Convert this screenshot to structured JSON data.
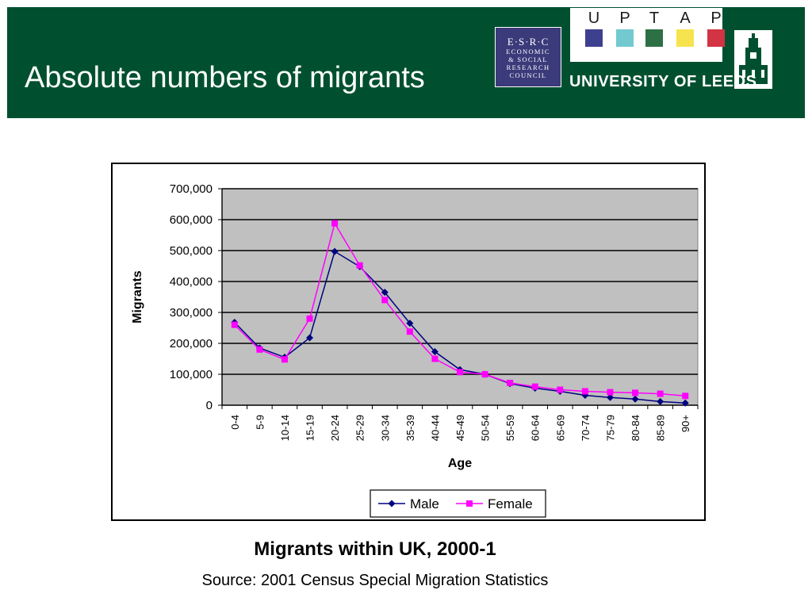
{
  "slide": {
    "title": "Absolute numbers of migrants",
    "caption": "Migrants within UK, 2000-1",
    "source": "Source: 2001 Census Special Migration Statistics"
  },
  "logos": {
    "esrc": {
      "acronym": "E·S·R·C",
      "lines": [
        "ECONOMIC",
        "& SOCIAL",
        "RESEARCH",
        "COUNCIL"
      ],
      "color": "#3b3a7a"
    },
    "uptap": [
      {
        "letter": "U",
        "color": "#3d3f8f"
      },
      {
        "letter": "P",
        "color": "#72c9cf"
      },
      {
        "letter": "T",
        "color": "#2e7045"
      },
      {
        "letter": "A",
        "color": "#f7e34e"
      },
      {
        "letter": "P",
        "color": "#d23443"
      }
    ],
    "leeds": "UNIVERSITY OF LEEDS"
  },
  "colors": {
    "header": "#005030",
    "plot_bg": "#c0c0c0",
    "male": "#000080",
    "female": "#ff00ff"
  },
  "chart_data": {
    "type": "line",
    "title": "",
    "xlabel": "Age",
    "ylabel": "Migrants",
    "ylim": [
      0,
      700000
    ],
    "yticks": [
      0,
      100000,
      200000,
      300000,
      400000,
      500000,
      600000,
      700000
    ],
    "ytick_labels": [
      "0",
      "100,000",
      "200,000",
      "300,000",
      "400,000",
      "500,000",
      "600,000",
      "700,000"
    ],
    "grid": "horizontal",
    "legend_position": "bottom",
    "categories": [
      "0-4",
      "5-9",
      "10-14",
      "15-19",
      "20-24",
      "25-29",
      "30-34",
      "35-39",
      "40-44",
      "45-49",
      "50-54",
      "55-59",
      "60-64",
      "65-69",
      "70-74",
      "75-79",
      "80-84",
      "85-89",
      "90+"
    ],
    "series": [
      {
        "name": "Male",
        "marker": "diamond",
        "values": [
          268000,
          185000,
          155000,
          218000,
          497000,
          448000,
          365000,
          265000,
          173000,
          115000,
          100000,
          70000,
          55000,
          45000,
          32000,
          25000,
          20000,
          12000,
          7000
        ]
      },
      {
        "name": "Female",
        "marker": "square",
        "values": [
          260000,
          180000,
          148000,
          280000,
          588000,
          452000,
          340000,
          238000,
          150000,
          107000,
          100000,
          72000,
          60000,
          50000,
          45000,
          42000,
          40000,
          37000,
          30000
        ]
      }
    ]
  }
}
